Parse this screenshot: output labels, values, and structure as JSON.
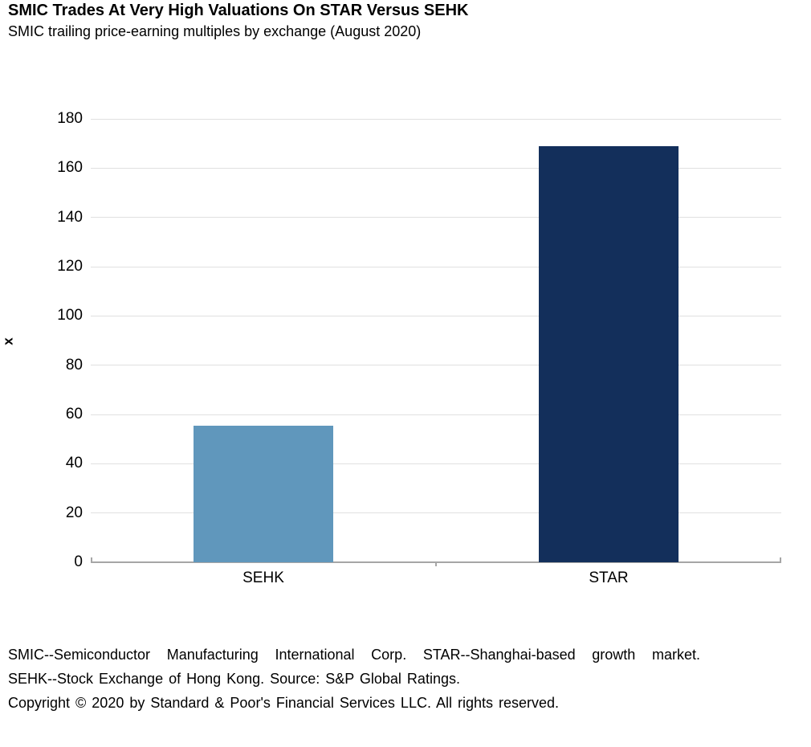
{
  "chart_data": {
    "type": "bar",
    "title": "SMIC Trades At Very High Valuations On STAR Versus SEHK",
    "subtitle": "SMIC trailing price-earning multiples by exchange (August 2020)",
    "categories": [
      "SEHK",
      "STAR"
    ],
    "values": [
      55.5,
      169
    ],
    "bar_colors": [
      "#6097bc",
      "#132f5b"
    ],
    "xlabel": "",
    "ylabel": "x",
    "ylim": [
      0,
      180
    ],
    "ytick_step": 20,
    "yticks": [
      0,
      20,
      40,
      60,
      80,
      100,
      120,
      140,
      160,
      180
    ],
    "grid": true,
    "legend": false,
    "gridline_color": "#e0e0e0",
    "axis_color": "#a6a6a6"
  },
  "footnotes": {
    "line1": "SMIC--Semiconductor Manufacturing International Corp. STAR--Shanghai-based growth market.",
    "line2": "SEHK--Stock Exchange of Hong Kong. Source: S&P Global Ratings.",
    "line3": "Copyright © 2020 by Standard & Poor's Financial Services LLC. All rights reserved."
  }
}
